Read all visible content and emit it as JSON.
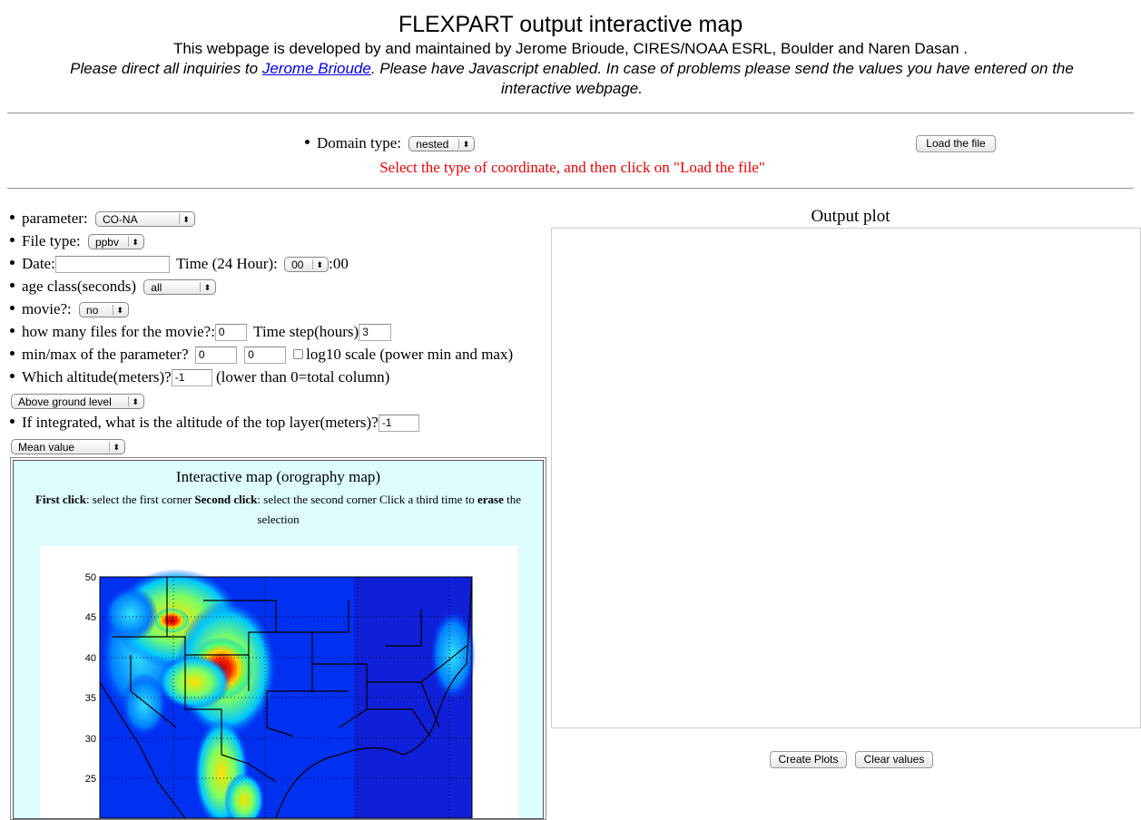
{
  "header": {
    "title": "FLEXPART output interactive map",
    "developed_by": "This webpage is developed by and maintained by Jerome Brioude, CIRES/NOAA ESRL, Boulder and Naren Dasan .",
    "inquiries_prefix": "Please direct all inquiries to ",
    "inquiries_link": "Jerome Brioude",
    "inquiries_suffix": ". Please have Javascript enabled. In case of problems please send the values you have entered on the interactive webpage."
  },
  "domain": {
    "label": "Domain type:",
    "value": "nested",
    "load_button": "Load the file",
    "notice": "Select the type of coordinate, and then click on \"Load the file\""
  },
  "form": {
    "parameter_label": "parameter:",
    "parameter_value": "CO-NA",
    "filetype_label": "File type:",
    "filetype_value": "ppbv",
    "date_label": "Date:",
    "date_value": "",
    "time_label": "Time (24 Hour):",
    "time_value": "00",
    "time_suffix": ":00",
    "age_label": "age class(seconds)",
    "age_value": "all",
    "movie_label": "movie?:",
    "movie_value": "no",
    "files_label": "how many files for the movie?:",
    "files_value": "0",
    "timestep_label": "Time step(hours)",
    "timestep_value": "3",
    "minmax_label": "min/max of the parameter?",
    "min_value": "0",
    "max_value": "0",
    "log_label": "log10 scale (power min and max)",
    "altitude_label": "Which altitude(meters)?",
    "altitude_value": "-1",
    "altitude_note": "(lower than 0=total column)",
    "level_value": "Above ground level",
    "integrated_label": "If integrated, what is the altitude of the top layer(meters)?",
    "integrated_value": "-1",
    "stat_value": "Mean value"
  },
  "map": {
    "title": "Interactive map (orography map)",
    "first_click_bold": "First click",
    "first_click_text": ": select the first corner ",
    "second_click_bold": "Second click",
    "second_click_text": ": select the second corner Click a third time to ",
    "erase_bold": "erase",
    "erase_text": " the selection",
    "y_ticks": [
      "50",
      "45",
      "40",
      "35",
      "30",
      "25"
    ]
  },
  "output": {
    "title": "Output plot",
    "create_button": "Create Plots",
    "clear_button": "Clear values"
  }
}
